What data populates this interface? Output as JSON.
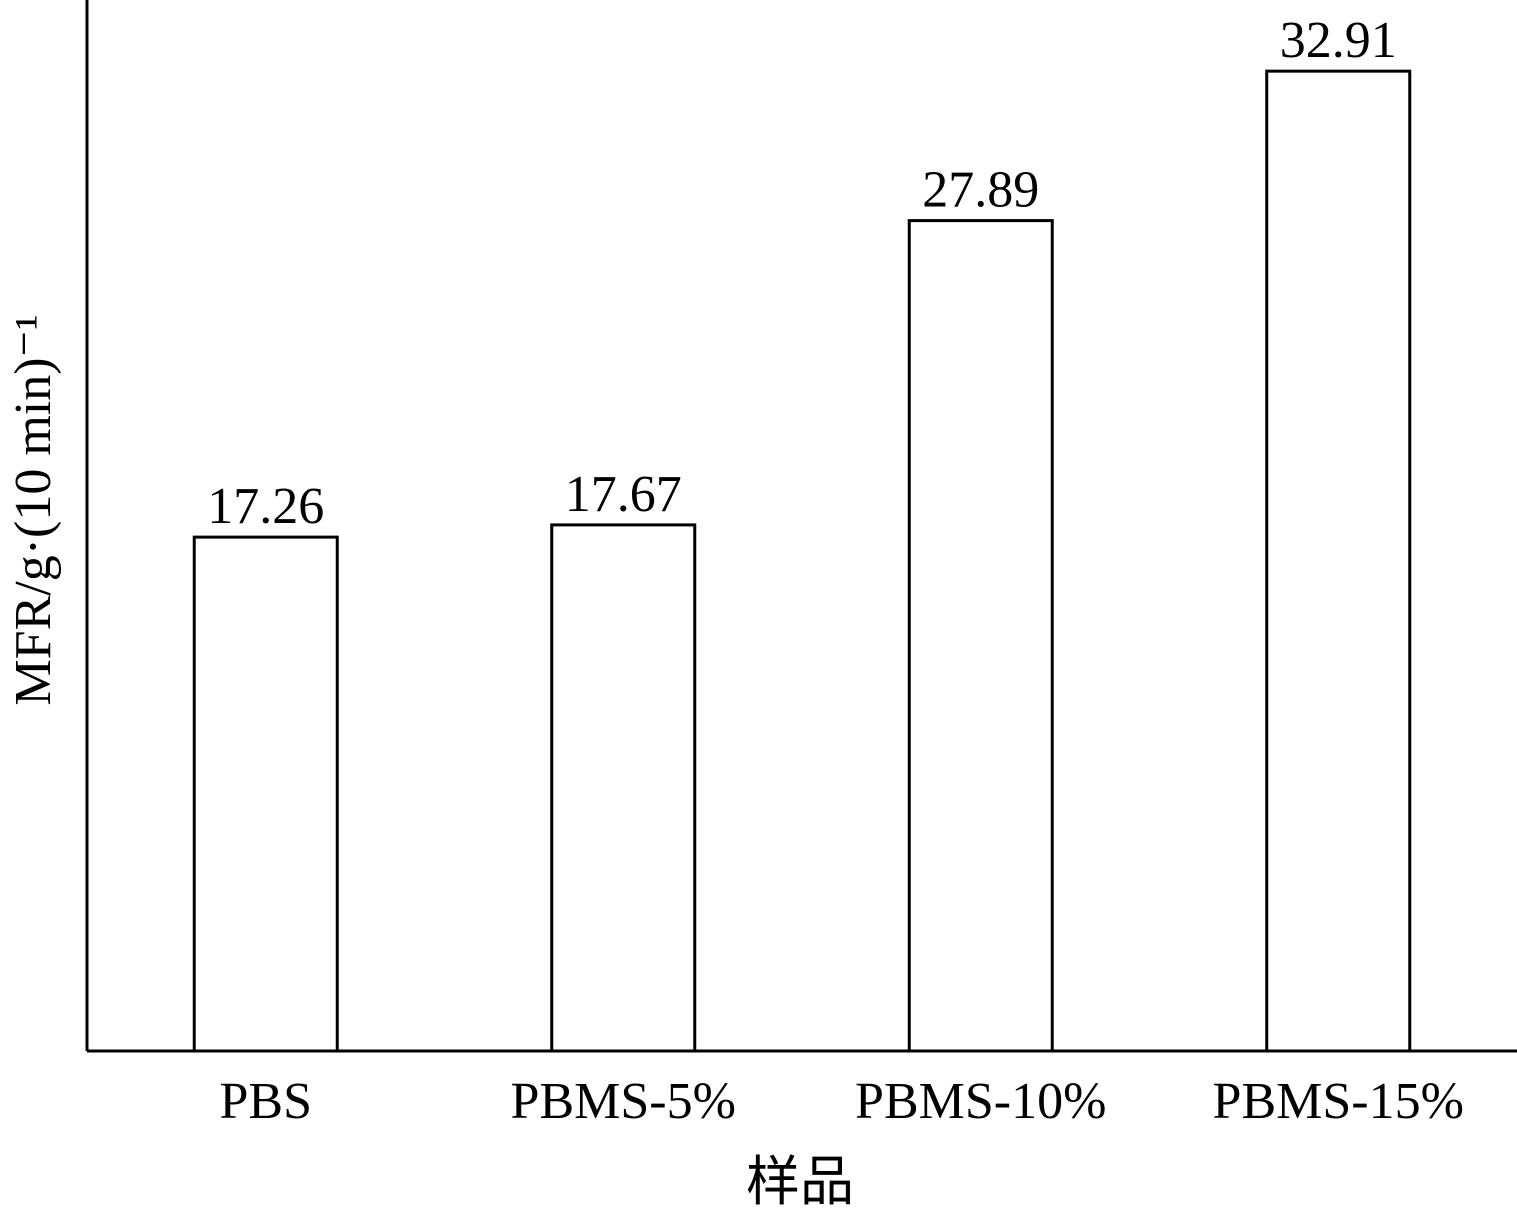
{
  "chart_data": {
    "type": "bar",
    "x_label": "样品",
    "y_label": "MFR/g·(10 min)⁻¹",
    "categories": [
      "PBS",
      "PBMS-5%",
      "PBMS-10%",
      "PBMS-15%"
    ],
    "values": [
      17.26,
      17.67,
      27.89,
      32.91
    ],
    "color": "#ffffff",
    "ylim": [
      0,
      35.3
    ],
    "grid": false
  }
}
